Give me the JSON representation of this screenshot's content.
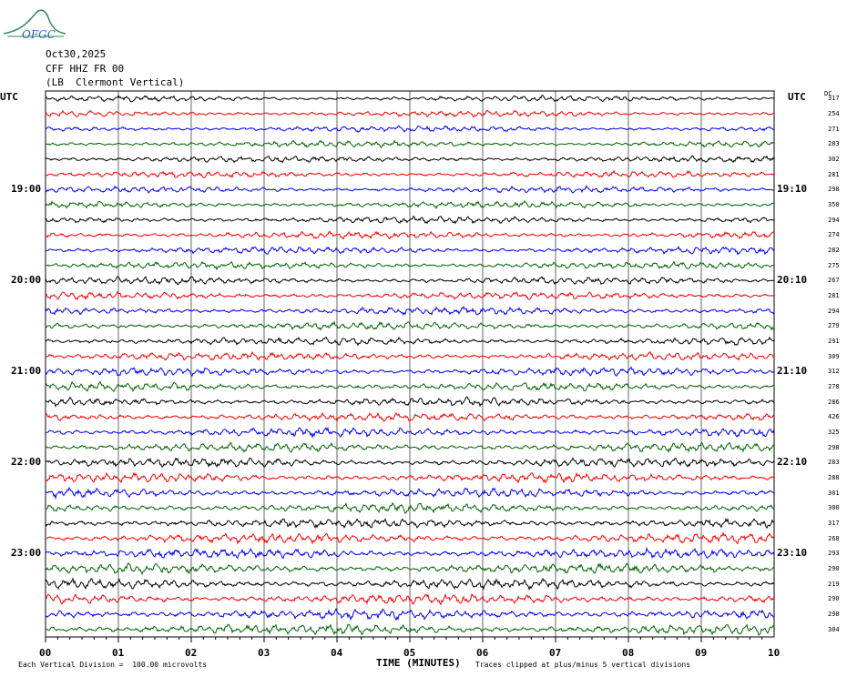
{
  "logo_text": "OFGC",
  "header": {
    "date": "Oct30,2025",
    "station": "CFF HHZ FR 00",
    "location": "(LB  Clermont Vertical)"
  },
  "labels": {
    "left_utc": "UTC",
    "right_utc": "UTC",
    "dc": "DC"
  },
  "chart_data": {
    "type": "line",
    "title": "",
    "xlabel": "TIME (MINUTES)",
    "ylabel": "",
    "x_ticks": [
      "00",
      "01",
      "02",
      "03",
      "04",
      "05",
      "06",
      "07",
      "08",
      "09",
      "10"
    ],
    "xlim": [
      0,
      10
    ],
    "grid": true,
    "trace_colors": [
      "#000000",
      "#ff0000",
      "#0000ff",
      "#006600"
    ],
    "left_time_labels": [
      {
        "row": 6,
        "label": "19:00"
      },
      {
        "row": 12,
        "label": "20:00"
      },
      {
        "row": 18,
        "label": "21:00"
      },
      {
        "row": 24,
        "label": "22:00"
      },
      {
        "row": 30,
        "label": "23:00"
      }
    ],
    "right_time_labels": [
      {
        "row": 6,
        "label": "19:10"
      },
      {
        "row": 12,
        "label": "20:10"
      },
      {
        "row": 18,
        "label": "21:10"
      },
      {
        "row": 24,
        "label": "22:10"
      },
      {
        "row": 30,
        "label": "23:10"
      }
    ],
    "dc_offsets": [
      317,
      254,
      271,
      283,
      302,
      281,
      298,
      350,
      294,
      274,
      282,
      275,
      267,
      281,
      294,
      279,
      291,
      309,
      312,
      278,
      286,
      426,
      325,
      298,
      283,
      288,
      301,
      300,
      317,
      268,
      293,
      290,
      219,
      290,
      298,
      304
    ]
  },
  "footer": {
    "scale_note": "Each Vertical Division =  100.00 microvolts",
    "clip_note": "Traces clipped at plus/minus 5 vertical divisions"
  }
}
